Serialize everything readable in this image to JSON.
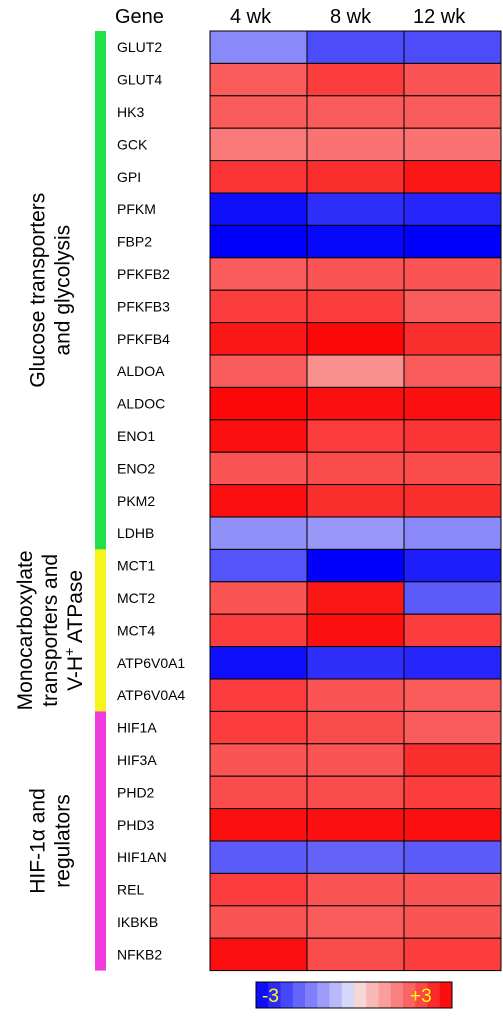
{
  "chart_data": {
    "type": "heatmap",
    "header": {
      "gene": "Gene"
    },
    "columns": [
      "4 wk",
      "8 wk",
      "12 wk"
    ],
    "scale": {
      "min": -3,
      "max": 3,
      "min_label": "-3",
      "max_label": "+3"
    },
    "groups": [
      {
        "label_lines": [
          "Glucose transporters",
          "and glycolysis"
        ],
        "color": "#22e04a",
        "genes": 16
      },
      {
        "label_lines": [
          "Monocarboxylate",
          "transporters and",
          "V-H+ ATPase"
        ],
        "color": "#f5f51c",
        "genes": 5
      },
      {
        "label_lines": [
          "HIF-1α and",
          "regulators"
        ],
        "color": "#f03cdc",
        "genes": 8
      }
    ],
    "rows": [
      {
        "gene": "GLUT2",
        "values": [
          -1.2,
          -2.0,
          -2.0
        ]
      },
      {
        "gene": "GLUT4",
        "values": [
          1.8,
          2.2,
          1.9
        ]
      },
      {
        "gene": "HK3",
        "values": [
          1.8,
          1.8,
          1.8
        ]
      },
      {
        "gene": "GCK",
        "values": [
          1.4,
          1.5,
          1.5
        ]
      },
      {
        "gene": "GPI",
        "values": [
          2.3,
          2.4,
          2.7
        ]
      },
      {
        "gene": "PFKM",
        "values": [
          -2.8,
          -2.4,
          -2.5
        ]
      },
      {
        "gene": "FBP2",
        "values": [
          -3.0,
          -2.9,
          -3.0
        ]
      },
      {
        "gene": "PFKFB2",
        "values": [
          1.8,
          1.9,
          1.9
        ]
      },
      {
        "gene": "PFKFB3",
        "values": [
          2.2,
          2.2,
          1.8
        ]
      },
      {
        "gene": "PFKFB4",
        "values": [
          2.7,
          2.9,
          2.4
        ]
      },
      {
        "gene": "ALDOA",
        "values": [
          1.8,
          1.1,
          1.8
        ]
      },
      {
        "gene": "ALDOC",
        "values": [
          2.9,
          2.8,
          2.8
        ]
      },
      {
        "gene": "ENO1",
        "values": [
          2.8,
          2.2,
          2.3
        ]
      },
      {
        "gene": "ENO2",
        "values": [
          1.9,
          2.0,
          2.0
        ]
      },
      {
        "gene": "PKM2",
        "values": [
          2.8,
          2.4,
          2.4
        ]
      },
      {
        "gene": "LDHB",
        "values": [
          -1.1,
          -1.0,
          -1.2
        ]
      },
      {
        "gene": "MCT1",
        "values": [
          -1.9,
          -3.0,
          -2.6
        ]
      },
      {
        "gene": "MCT2",
        "values": [
          1.9,
          2.7,
          -1.8
        ]
      },
      {
        "gene": "MCT4",
        "values": [
          2.2,
          2.8,
          2.2
        ]
      },
      {
        "gene": "ATP6V0A1",
        "values": [
          -2.8,
          -2.4,
          -2.5
        ]
      },
      {
        "gene": "ATP6V0A4",
        "values": [
          2.2,
          1.9,
          1.8
        ]
      },
      {
        "gene": "HIF1A",
        "values": [
          2.2,
          2.0,
          1.8
        ]
      },
      {
        "gene": "HIF3A",
        "values": [
          1.9,
          1.9,
          2.4
        ]
      },
      {
        "gene": "PHD2",
        "values": [
          2.0,
          2.0,
          2.2
        ]
      },
      {
        "gene": "PHD3",
        "values": [
          2.8,
          2.8,
          2.8
        ]
      },
      {
        "gene": "HIF1AN",
        "values": [
          -1.8,
          -1.7,
          -1.8
        ]
      },
      {
        "gene": "REL",
        "values": [
          2.2,
          1.9,
          1.9
        ]
      },
      {
        "gene": "IKBKB",
        "values": [
          1.9,
          1.8,
          1.9
        ]
      },
      {
        "gene": "NFKB2",
        "values": [
          2.8,
          2.0,
          2.2
        ]
      }
    ]
  }
}
